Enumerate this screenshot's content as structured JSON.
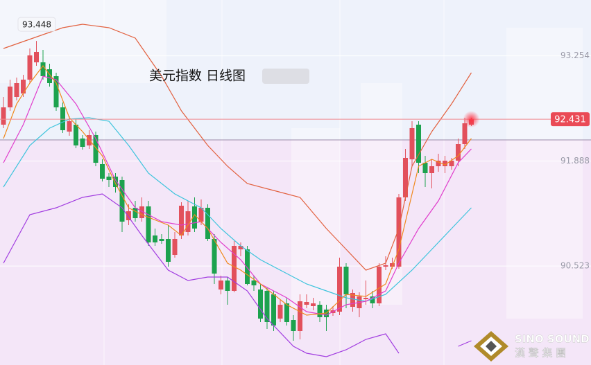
{
  "chart_data": {
    "type": "candlestick",
    "title": "美元指数  日线图",
    "ylim": [
      89.237,
      93.98
    ],
    "yticks": [
      {
        "value": 93.254,
        "label": "93.254"
      },
      {
        "value": 91.888,
        "label": "91.888"
      },
      {
        "value": 90.523,
        "label": "90.523"
      }
    ],
    "up_color": "#e2505c",
    "down_color": "#1ca24e",
    "high_label": 93.448,
    "last_price": 92.431,
    "crosshair": 92.162,
    "watermark": {
      "latin": "SINO SOUND",
      "chinese": "漢 聲 集 團"
    },
    "open": [
      92.36,
      92.585,
      92.72,
      92.765,
      92.945,
      93.17,
      93.17,
      93.08,
      92.99,
      92.585,
      92.27,
      92.36,
      92.18,
      92.09,
      92.225,
      91.847,
      91.685,
      91.685,
      91.64,
      91.118,
      91.28,
      91.145,
      91.298,
      90.92,
      90.875,
      90.875,
      90.668,
      90.92,
      90.965,
      91.298,
      91.1,
      91.28,
      90.875,
      90.218,
      90.335,
      90.2,
      90.74,
      90.74,
      90.335,
      90.218,
      90.2,
      90.155,
      89.84,
      90.038,
      89.822,
      89.678,
      90.02,
      90.002,
      90.02,
      89.957,
      89.912,
      89.93,
      90.515,
      89.993,
      89.975,
      90.092,
      90.128,
      90.038,
      90.515,
      90.515,
      90.515,
      91.415,
      91.91,
      92.36,
      91.865,
      91.73,
      91.82,
      91.82,
      91.82,
      91.892,
      92.108,
      92.36
    ],
    "high": [
      92.72,
      92.945,
      92.972,
      93.008,
      93.35,
      93.448,
      93.332,
      93.152,
      93.035,
      92.648,
      92.468,
      92.432,
      92.225,
      92.288,
      92.27,
      91.91,
      91.73,
      91.73,
      91.685,
      91.325,
      91.37,
      91.415,
      91.37,
      91.01,
      90.938,
      91.055,
      90.965,
      91.352,
      91.37,
      91.415,
      91.388,
      91.325,
      90.938,
      90.398,
      90.38,
      90.848,
      90.83,
      90.785,
      90.398,
      90.29,
      90.245,
      90.2,
      90.092,
      90.11,
      89.885,
      90.155,
      90.155,
      90.11,
      90.065,
      90.02,
      90.002,
      90.632,
      90.56,
      90.218,
      90.182,
      90.335,
      90.2,
      90.56,
      90.65,
      90.632,
      91.46,
      92.045,
      92.405,
      92.405,
      91.955,
      91.91,
      91.982,
      91.955,
      91.928,
      92.18,
      92.45,
      92.45
    ],
    "low": [
      92.315,
      92.54,
      92.675,
      92.72,
      92.9,
      93.125,
      92.945,
      92.855,
      92.54,
      92.252,
      92.216,
      92.054,
      92.036,
      92.045,
      91.82,
      91.622,
      91.55,
      91.478,
      90.965,
      91.055,
      91.1,
      91.1,
      90.785,
      90.785,
      90.812,
      90.515,
      90.632,
      90.875,
      90.92,
      90.965,
      91.055,
      90.848,
      90.29,
      90.155,
      90.02,
      90.182,
      90.65,
      90.272,
      90.2,
      89.795,
      89.705,
      89.678,
      89.795,
      89.75,
      89.552,
      89.57,
      89.975,
      89.948,
      89.795,
      89.678,
      89.876,
      89.885,
      89.975,
      89.93,
      89.858,
      90.02,
      89.975,
      90.002,
      90.47,
      90.488,
      90.488,
      91.37,
      91.82,
      91.73,
      91.55,
      91.532,
      91.748,
      91.73,
      91.775,
      91.82,
      92.045,
      92.342
    ],
    "close": [
      92.585,
      92.855,
      92.9,
      92.945,
      93.26,
      93.305,
      92.99,
      92.9,
      92.585,
      92.288,
      92.405,
      92.09,
      92.072,
      92.225,
      91.865,
      91.658,
      91.64,
      91.55,
      91.1,
      91.235,
      91.145,
      91.298,
      90.83,
      90.83,
      90.848,
      90.578,
      90.875,
      91.307,
      91.235,
      91.01,
      91.28,
      90.875,
      90.425,
      90.335,
      90.2,
      90.785,
      90.785,
      90.29,
      90.272,
      89.84,
      89.795,
      89.75,
      90.02,
      89.795,
      89.678,
      90.065,
      90.056,
      90.038,
      89.858,
      89.858,
      89.948,
      90.515,
      90.155,
      90.173,
      90.128,
      90.11,
      90.038,
      90.515,
      90.533,
      90.56,
      91.415,
      91.928,
      92.315,
      91.865,
      91.73,
      91.82,
      91.892,
      91.892,
      91.892,
      92.108,
      92.378,
      92.431
    ],
    "lines": [
      {
        "color": "#e2603e",
        "x": [
          0,
          9,
          12,
          16,
          20,
          24,
          27,
          31,
          34,
          37,
          41,
          45,
          49,
          52,
          55,
          58,
          60,
          62,
          65,
          68,
          71
        ],
        "values": [
          93.35,
          93.62,
          93.665,
          93.62,
          93.485,
          92.99,
          92.54,
          92.09,
          91.82,
          91.595,
          91.505,
          91.415,
          91.01,
          90.74,
          90.47,
          90.56,
          91.01,
          91.82,
          92.27,
          92.63,
          93.035
        ]
      },
      {
        "color": "#a13ce0",
        "x": [
          0,
          4,
          8,
          12,
          15,
          18,
          21,
          25,
          28,
          31,
          34,
          37,
          40,
          44,
          46,
          49,
          52,
          55,
          58,
          60,
          61,
          69,
          71
        ],
        "values": [
          90.56,
          91.19,
          91.28,
          91.415,
          91.46,
          91.28,
          90.92,
          90.47,
          90.335,
          90.38,
          90.38,
          90.2,
          89.84,
          89.48,
          89.39,
          89.345,
          89.435,
          89.57,
          89.642,
          89.39,
          null,
          89.48,
          89.552
        ]
      },
      {
        "color": "#3cc4dc",
        "x": [
          0,
          4,
          7,
          10,
          13,
          16,
          19,
          22,
          26,
          30,
          33,
          36,
          39,
          43,
          46,
          49,
          52,
          55,
          58,
          62,
          65,
          68,
          71
        ],
        "values": [
          91.55,
          92.09,
          92.315,
          92.432,
          92.45,
          92.405,
          92.09,
          91.73,
          91.46,
          91.28,
          91.01,
          90.785,
          90.605,
          90.425,
          90.29,
          90.2,
          90.11,
          90.065,
          90.155,
          90.47,
          90.74,
          91.01,
          91.28
        ]
      },
      {
        "color": "#e03ccc",
        "x": [
          0,
          3,
          6,
          8,
          11,
          14,
          17,
          20,
          24,
          27,
          30,
          33,
          36,
          39,
          43,
          46,
          49,
          52,
          55,
          58,
          60,
          63,
          66,
          69,
          71
        ],
        "values": [
          91.865,
          92.36,
          92.99,
          92.945,
          92.63,
          92.18,
          91.64,
          91.28,
          91.1,
          91.055,
          91.1,
          90.83,
          90.605,
          90.29,
          90.11,
          89.93,
          89.885,
          90.02,
          90.065,
          90.2,
          90.56,
          91.01,
          91.37,
          91.865,
          92.045
        ]
      },
      {
        "color": "#f0881c",
        "x": [
          0,
          2,
          4,
          6,
          8,
          10,
          12,
          15,
          17,
          19,
          21,
          25,
          27,
          29,
          31,
          34,
          36,
          39,
          43,
          46,
          49,
          52,
          55,
          58,
          60,
          62,
          63,
          65,
          67,
          69,
          71
        ],
        "values": [
          92.18,
          92.63,
          92.9,
          93.125,
          92.9,
          92.45,
          92.27,
          91.955,
          91.595,
          91.28,
          91.19,
          91.055,
          90.92,
          91.19,
          91.01,
          90.56,
          90.47,
          90.29,
          90.02,
          89.885,
          89.912,
          90.155,
          90.128,
          90.29,
          90.74,
          91.46,
          91.82,
          91.91,
          91.838,
          91.955,
          92.18
        ]
      }
    ]
  }
}
